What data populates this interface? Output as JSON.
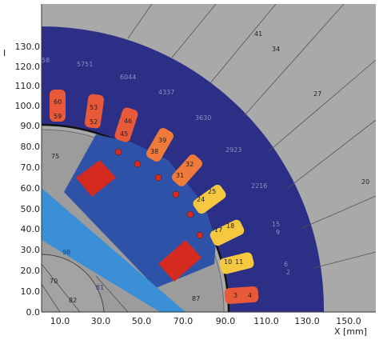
{
  "axes": {
    "y_axis_label": "I",
    "x_axis_label": "X [mm]",
    "y_ticks": [
      "0.0",
      "10.0",
      "20.0",
      "30.0",
      "40.0",
      "50.0",
      "60.0",
      "70.0",
      "80.0",
      "90.0",
      "100.0",
      "110.0",
      "120.0",
      "130.0"
    ],
    "x_ticks": [
      "10.0",
      "30.0",
      "50.0",
      "70.0",
      "90.0",
      "110.0",
      "130.0",
      "150.0"
    ]
  },
  "colors": {
    "stator": "#2b2f86",
    "background_mesh": "#a8a8a8",
    "rotor_core": "#2e52a8",
    "shaft": "#3b8fd6",
    "magnet": "#d42a20",
    "slot_warm": "#e8593a",
    "slot_orange": "#ef8a3a",
    "slot_yellow": "#f5c840"
  },
  "region_labels": {
    "outer": [
      "41",
      "34",
      "27",
      "20"
    ],
    "outer_lower": [
      "15",
      "9",
      "6",
      "2"
    ],
    "stator": [
      "5751",
      "6044",
      "4337",
      "3630",
      "2923",
      "2216"
    ],
    "slots": [
      "60",
      "59",
      "53",
      "52",
      "46",
      "45",
      "39",
      "38",
      "32",
      "31",
      "25",
      "24",
      "18",
      "17",
      "11",
      "10",
      "4",
      "3"
    ],
    "rotor": [
      "75",
      "58",
      "70",
      "82",
      "87",
      "98",
      "81"
    ]
  }
}
